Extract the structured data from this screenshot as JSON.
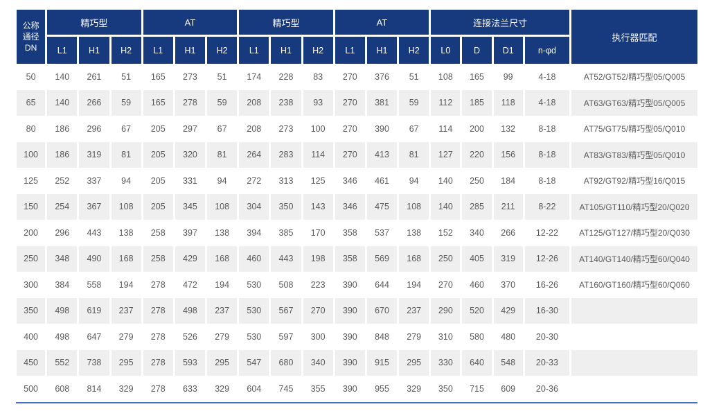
{
  "colors": {
    "header_bg": "#17397E",
    "header_text": "#FFFFFF",
    "row_alt_bg": "#EFEFEF",
    "body_text": "#595959",
    "bottom_rule": "#4472C4"
  },
  "table": {
    "dn_header": "公称\n通径\nDN",
    "actuator_header": "执行器匹配",
    "groups": [
      {
        "label": "精巧型",
        "cols": [
          "L1",
          "H1",
          "H2"
        ]
      },
      {
        "label": "AT",
        "cols": [
          "L1",
          "H1",
          "H2"
        ]
      },
      {
        "label": "精巧型",
        "cols": [
          "L1",
          "H1",
          "H2"
        ]
      },
      {
        "label": "AT",
        "cols": [
          "L1",
          "H1",
          "H2"
        ]
      },
      {
        "label": "连接法兰尺寸",
        "cols": [
          "L0",
          "D",
          "D1",
          "n-φd"
        ]
      }
    ],
    "rows": [
      {
        "dn": "50",
        "values": [
          "140",
          "261",
          "51",
          "165",
          "273",
          "51",
          "174",
          "228",
          "83",
          "270",
          "376",
          "51",
          "108",
          "165",
          "99",
          "4-18"
        ],
        "actuator": "AT52/GT52/精巧型05/Q005"
      },
      {
        "dn": "65",
        "values": [
          "140",
          "266",
          "59",
          "165",
          "278",
          "59",
          "208",
          "238",
          "93",
          "270",
          "381",
          "59",
          "112",
          "185",
          "118",
          "4-18"
        ],
        "actuator": "AT63/GT63/精巧型05/Q005"
      },
      {
        "dn": "80",
        "values": [
          "186",
          "296",
          "67",
          "205",
          "297",
          "67",
          "208",
          "273",
          "100",
          "270",
          "390",
          "67",
          "114",
          "200",
          "132",
          "8-18"
        ],
        "actuator": "AT75/GT75/精巧型05/Q010"
      },
      {
        "dn": "100",
        "values": [
          "186",
          "319",
          "81",
          "205",
          "320",
          "81",
          "264",
          "283",
          "114",
          "270",
          "413",
          "81",
          "127",
          "220",
          "156",
          "8-18"
        ],
        "actuator": "AT83/GT83/精巧型05/Q010"
      },
      {
        "dn": "125",
        "values": [
          "252",
          "337",
          "94",
          "205",
          "331",
          "94",
          "272",
          "313",
          "125",
          "346",
          "461",
          "94",
          "140",
          "250",
          "184",
          "8-18"
        ],
        "actuator": "AT92/GT92/精巧型16/Q015"
      },
      {
        "dn": "150",
        "values": [
          "254",
          "367",
          "108",
          "205",
          "345",
          "108",
          "304",
          "350",
          "143",
          "346",
          "475",
          "108",
          "140",
          "285",
          "211",
          "8-22"
        ],
        "actuator": "AT105/GT110/精巧型20/Q020"
      },
      {
        "dn": "200",
        "values": [
          "296",
          "443",
          "138",
          "258",
          "397",
          "138",
          "394",
          "385",
          "170",
          "358",
          "537",
          "138",
          "152",
          "340",
          "266",
          "12-22"
        ],
        "actuator": "AT125/GT127/精巧型20/Q030"
      },
      {
        "dn": "250",
        "values": [
          "348",
          "490",
          "168",
          "258",
          "429",
          "168",
          "460",
          "443",
          "198",
          "358",
          "569",
          "168",
          "250",
          "405",
          "319",
          "12-26"
        ],
        "actuator": "AT140/GT140/精巧型60/Q040"
      },
      {
        "dn": "300",
        "values": [
          "384",
          "558",
          "194",
          "278",
          "472",
          "194",
          "530",
          "508",
          "223",
          "390",
          "644",
          "194",
          "270",
          "460",
          "370",
          "16-26"
        ],
        "actuator": "AT160/GT160/精巧型60/Q060"
      },
      {
        "dn": "350",
        "values": [
          "498",
          "619",
          "237",
          "278",
          "498",
          "237",
          "530",
          "567",
          "270",
          "390",
          "670",
          "237",
          "290",
          "520",
          "429",
          "16-30"
        ],
        "actuator": ""
      },
      {
        "dn": "400",
        "values": [
          "498",
          "647",
          "279",
          "278",
          "526",
          "279",
          "530",
          "597",
          "300",
          "390",
          "848",
          "279",
          "310",
          "580",
          "480",
          "20-30"
        ],
        "actuator": ""
      },
      {
        "dn": "450",
        "values": [
          "552",
          "738",
          "295",
          "278",
          "593",
          "295",
          "547",
          "680",
          "340",
          "390",
          "915",
          "295",
          "330",
          "640",
          "548",
          "20-33"
        ],
        "actuator": ""
      },
      {
        "dn": "500",
        "values": [
          "608",
          "814",
          "329",
          "278",
          "633",
          "329",
          "604",
          "745",
          "355",
          "390",
          "955",
          "329",
          "350",
          "715",
          "609",
          "20-36"
        ],
        "actuator": ""
      }
    ]
  }
}
